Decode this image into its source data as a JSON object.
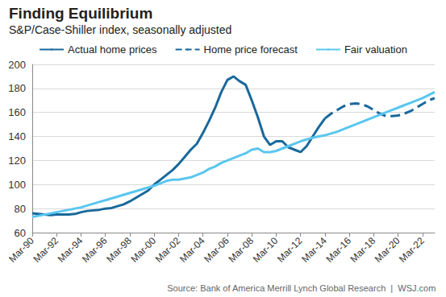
{
  "chart_data": {
    "type": "line",
    "title": "Finding Equilibrium",
    "subtitle": "S&P/Case-Shiller index, seasonally adjusted",
    "source": "Source: Bank of America Merrill Lynch Global Research  |  WSJ.com",
    "categories": [
      "Mar-90",
      null,
      null,
      null,
      "Mar-92",
      null,
      null,
      null,
      "Mar-94",
      null,
      null,
      null,
      "Mar-96",
      null,
      null,
      null,
      "Mar-98",
      null,
      null,
      null,
      "Mar-00",
      null,
      null,
      null,
      "Mar-02",
      null,
      null,
      null,
      "Mar-04",
      null,
      null,
      null,
      "Mar-06",
      null,
      null,
      null,
      "Mar-08",
      null,
      null,
      null,
      "Mar-10",
      null,
      null,
      null,
      "Mar-12",
      null,
      null,
      null,
      "Mar-14",
      null,
      null,
      null,
      "Mar-16",
      null,
      null,
      null,
      "Mar-18",
      null,
      null,
      null,
      "Mar-20",
      null,
      null,
      null,
      "Mar-22",
      null,
      null
    ],
    "series": [
      {
        "name": "Actual home prices",
        "color": "#19689b",
        "line_style": "solid",
        "values": [
          76,
          75.5,
          75,
          74.5,
          75,
          75,
          75,
          75.5,
          77,
          78,
          78.5,
          79,
          80,
          80.5,
          82,
          83.5,
          86,
          89,
          92,
          95,
          100,
          104,
          108,
          112,
          117,
          123,
          129,
          134,
          143,
          153,
          164,
          177,
          187,
          190,
          186,
          183,
          170,
          156,
          140,
          133,
          136,
          136,
          131,
          129,
          127,
          132,
          140,
          148,
          155,
          null,
          null,
          null,
          null,
          null,
          null,
          null,
          null,
          null,
          null,
          null,
          null,
          null,
          null,
          null,
          null,
          null,
          null
        ]
      },
      {
        "name": "Home price forecast",
        "color": "#19689b",
        "line_style": "dashed",
        "values": [
          null,
          null,
          null,
          null,
          null,
          null,
          null,
          null,
          null,
          null,
          null,
          null,
          null,
          null,
          null,
          null,
          null,
          null,
          null,
          null,
          null,
          null,
          null,
          null,
          null,
          null,
          null,
          null,
          null,
          null,
          null,
          null,
          null,
          null,
          null,
          null,
          null,
          null,
          null,
          null,
          null,
          null,
          null,
          null,
          null,
          null,
          null,
          null,
          155,
          159,
          162,
          165,
          167,
          167.5,
          167,
          165,
          162,
          159,
          157,
          157,
          157.5,
          159,
          161,
          164,
          167,
          170,
          172
        ]
      },
      {
        "name": "Fair valuation",
        "color": "#5ac6ee",
        "line_style": "solid",
        "values": [
          73,
          74,
          75,
          76,
          77,
          78,
          79,
          80,
          81,
          82.5,
          84,
          85.5,
          87,
          88.5,
          90,
          91.5,
          93,
          94.5,
          96,
          97.5,
          99,
          101,
          103,
          104,
          104,
          105,
          106,
          108,
          110,
          113,
          115,
          118,
          120,
          122,
          124,
          126,
          129,
          130,
          127,
          127,
          128,
          130,
          132,
          134,
          136,
          137.5,
          139,
          140,
          141,
          142.5,
          144,
          146,
          148,
          150,
          152,
          154,
          156,
          158,
          160,
          162,
          164,
          166,
          168,
          170,
          172,
          174.5,
          177
        ]
      }
    ],
    "ylim": [
      60,
      200
    ],
    "yticks": [
      60,
      80,
      100,
      120,
      140,
      160,
      180,
      200
    ],
    "grid": true,
    "legend": "top"
  }
}
